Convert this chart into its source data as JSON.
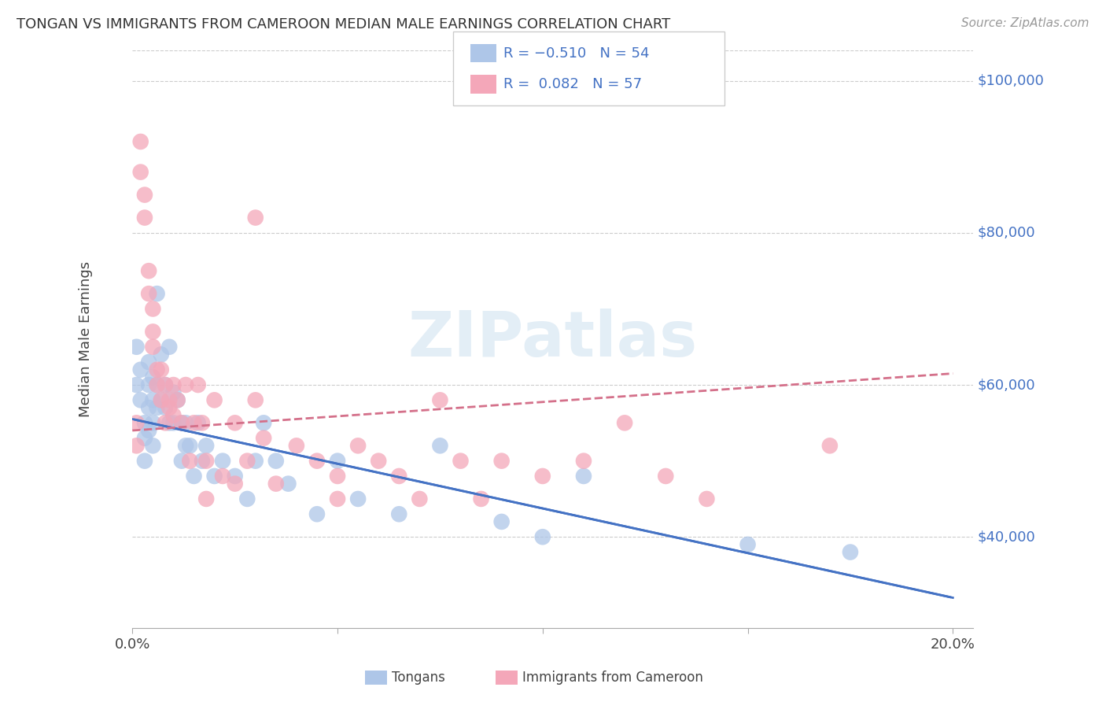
{
  "title": "TONGAN VS IMMIGRANTS FROM CAMEROON MEDIAN MALE EARNINGS CORRELATION CHART",
  "source": "Source: ZipAtlas.com",
  "ylabel": "Median Male Earnings",
  "watermark": "ZIPatlas",
  "background_color": "#ffffff",
  "tongan_color": "#aec6e8",
  "cameroon_color": "#f4a7b9",
  "tongan_line_color": "#4472c4",
  "cameroon_line_color": "#d4708a",
  "xlim": [
    0.0,
    0.205
  ],
  "ylim": [
    28000,
    104000
  ],
  "ytick_vals": [
    40000,
    60000,
    80000,
    100000
  ],
  "ytick_labels": [
    "$40,000",
    "$60,000",
    "$80,000",
    "$100,000"
  ],
  "xtick_vals": [
    0.0,
    0.05,
    0.1,
    0.15,
    0.2
  ],
  "xtick_labels": [
    "0.0%",
    "",
    "",
    "",
    "20.0%"
  ],
  "tongan_R": -0.51,
  "tongan_N": 54,
  "cameroon_R": 0.082,
  "cameroon_N": 57,
  "tong_line_x0": 0.0,
  "tong_line_y0": 55500,
  "tong_line_x1": 0.2,
  "tong_line_y1": 32000,
  "cam_line_x0": 0.0,
  "cam_line_y0": 54000,
  "cam_line_x1": 0.2,
  "cam_line_y1": 61500,
  "tongan_pts": [
    [
      0.001,
      65000
    ],
    [
      0.001,
      60000
    ],
    [
      0.002,
      62000
    ],
    [
      0.002,
      58000
    ],
    [
      0.003,
      55000
    ],
    [
      0.003,
      53000
    ],
    [
      0.003,
      50000
    ],
    [
      0.004,
      63000
    ],
    [
      0.004,
      60000
    ],
    [
      0.004,
      57000
    ],
    [
      0.004,
      54000
    ],
    [
      0.005,
      61000
    ],
    [
      0.005,
      58000
    ],
    [
      0.005,
      55000
    ],
    [
      0.005,
      52000
    ],
    [
      0.006,
      72000
    ],
    [
      0.006,
      60000
    ],
    [
      0.006,
      57000
    ],
    [
      0.007,
      64000
    ],
    [
      0.007,
      58000
    ],
    [
      0.008,
      60000
    ],
    [
      0.008,
      57000
    ],
    [
      0.009,
      65000
    ],
    [
      0.009,
      55000
    ],
    [
      0.01,
      59000
    ],
    [
      0.01,
      55000
    ],
    [
      0.011,
      58000
    ],
    [
      0.012,
      55000
    ],
    [
      0.012,
      50000
    ],
    [
      0.013,
      55000
    ],
    [
      0.013,
      52000
    ],
    [
      0.014,
      52000
    ],
    [
      0.015,
      48000
    ],
    [
      0.016,
      55000
    ],
    [
      0.017,
      50000
    ],
    [
      0.018,
      52000
    ],
    [
      0.02,
      48000
    ],
    [
      0.022,
      50000
    ],
    [
      0.025,
      48000
    ],
    [
      0.028,
      45000
    ],
    [
      0.03,
      50000
    ],
    [
      0.032,
      55000
    ],
    [
      0.035,
      50000
    ],
    [
      0.038,
      47000
    ],
    [
      0.045,
      43000
    ],
    [
      0.05,
      50000
    ],
    [
      0.055,
      45000
    ],
    [
      0.065,
      43000
    ],
    [
      0.075,
      52000
    ],
    [
      0.09,
      42000
    ],
    [
      0.1,
      40000
    ],
    [
      0.11,
      48000
    ],
    [
      0.15,
      39000
    ],
    [
      0.175,
      38000
    ]
  ],
  "cameroon_pts": [
    [
      0.001,
      55000
    ],
    [
      0.001,
      52000
    ],
    [
      0.002,
      92000
    ],
    [
      0.002,
      88000
    ],
    [
      0.003,
      85000
    ],
    [
      0.003,
      82000
    ],
    [
      0.004,
      75000
    ],
    [
      0.004,
      72000
    ],
    [
      0.005,
      70000
    ],
    [
      0.005,
      67000
    ],
    [
      0.005,
      65000
    ],
    [
      0.006,
      62000
    ],
    [
      0.006,
      60000
    ],
    [
      0.007,
      62000
    ],
    [
      0.007,
      58000
    ],
    [
      0.008,
      55000
    ],
    [
      0.008,
      60000
    ],
    [
      0.009,
      58000
    ],
    [
      0.009,
      57000
    ],
    [
      0.01,
      60000
    ],
    [
      0.01,
      56000
    ],
    [
      0.011,
      58000
    ],
    [
      0.012,
      55000
    ],
    [
      0.013,
      60000
    ],
    [
      0.014,
      50000
    ],
    [
      0.015,
      55000
    ],
    [
      0.016,
      60000
    ],
    [
      0.017,
      55000
    ],
    [
      0.018,
      50000
    ],
    [
      0.018,
      45000
    ],
    [
      0.02,
      58000
    ],
    [
      0.022,
      48000
    ],
    [
      0.025,
      55000
    ],
    [
      0.025,
      47000
    ],
    [
      0.028,
      50000
    ],
    [
      0.03,
      58000
    ],
    [
      0.03,
      82000
    ],
    [
      0.032,
      53000
    ],
    [
      0.035,
      47000
    ],
    [
      0.04,
      52000
    ],
    [
      0.045,
      50000
    ],
    [
      0.05,
      48000
    ],
    [
      0.05,
      45000
    ],
    [
      0.055,
      52000
    ],
    [
      0.06,
      50000
    ],
    [
      0.065,
      48000
    ],
    [
      0.07,
      45000
    ],
    [
      0.075,
      58000
    ],
    [
      0.08,
      50000
    ],
    [
      0.085,
      45000
    ],
    [
      0.09,
      50000
    ],
    [
      0.1,
      48000
    ],
    [
      0.11,
      50000
    ],
    [
      0.12,
      55000
    ],
    [
      0.13,
      48000
    ],
    [
      0.14,
      45000
    ],
    [
      0.17,
      52000
    ]
  ]
}
